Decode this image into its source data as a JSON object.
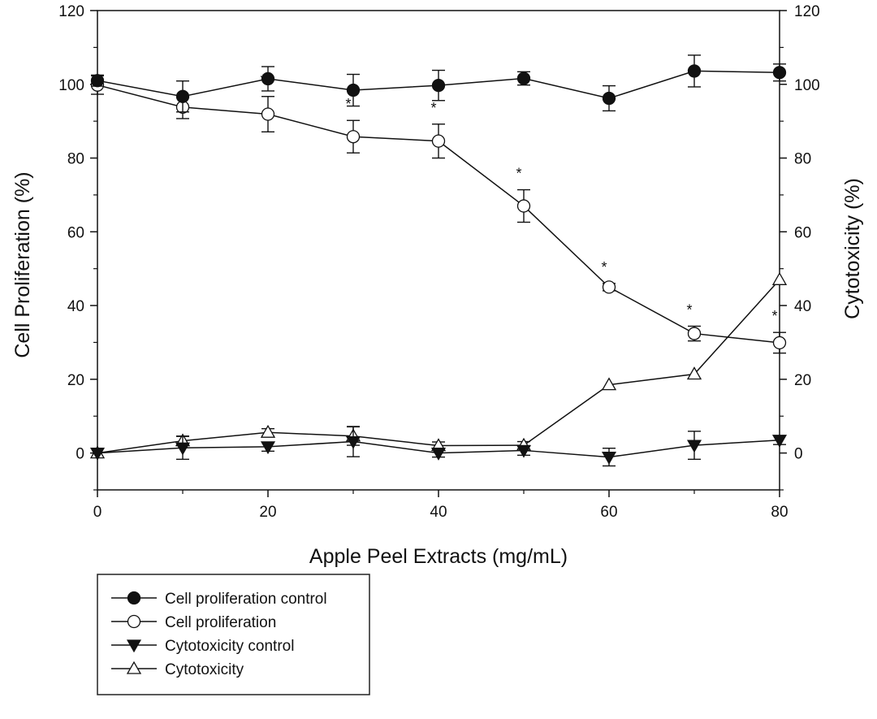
{
  "chart_data": {
    "type": "line",
    "title": "",
    "xlabel": "Apple Peel Extracts (mg/mL)",
    "ylabel": "Cell Proliferation (%)",
    "y2label": "Cytotoxicity (%)",
    "xlim": [
      0,
      80
    ],
    "ylim": [
      -10,
      120
    ],
    "y2lim": [
      -10,
      120
    ],
    "xticks": [
      "0",
      "20",
      "40",
      "60",
      "80"
    ],
    "yticks": [
      "0",
      "20",
      "40",
      "60",
      "80",
      "100",
      "120"
    ],
    "y2ticks": [
      "0",
      "20",
      "40",
      "60",
      "80",
      "100",
      "120"
    ],
    "grid": false,
    "legend_position": "bottom-left",
    "x": [
      0,
      10,
      20,
      30,
      40,
      50,
      60,
      70,
      80
    ],
    "series": [
      {
        "name": "Cell proliferation control",
        "marker": "filled-circle",
        "values": [
          101,
          96.7,
          101.5,
          98.4,
          99.7,
          101.6,
          96.2,
          103.6,
          103.2
        ],
        "errors": [
          1.5,
          4.2,
          3.3,
          4.3,
          4.1,
          1.8,
          3.4,
          4.3,
          2.3
        ]
      },
      {
        "name": "Cell proliferation",
        "marker": "open-circle",
        "values": [
          99.8,
          93.8,
          91.9,
          85.8,
          84.6,
          67,
          45,
          32.4,
          29.9
        ],
        "errors": [
          2.5,
          3.1,
          4.8,
          4.4,
          4.6,
          4.4,
          1,
          2,
          2.8
        ],
        "significance": [
          "",
          "",
          "*",
          "*",
          "*",
          "*",
          "*",
          "*",
          "*"
        ]
      },
      {
        "name": "Cytotoxicity control",
        "marker": "filled-triangle-down",
        "values": [
          0,
          1.4,
          1.7,
          3.1,
          0,
          0.7,
          -1.1,
          2.1,
          3.5
        ],
        "errors": [
          0,
          3.1,
          1.2,
          4.1,
          1.1,
          1.3,
          2.4,
          3.8,
          1.2
        ]
      },
      {
        "name": "Cytotoxicity",
        "marker": "open-triangle-up",
        "values": [
          0,
          3.3,
          5.6,
          4.6,
          2,
          2.1,
          18.5,
          21.4,
          47
        ],
        "errors": [
          0,
          1.3,
          1,
          2.5,
          1,
          1,
          0,
          0,
          0
        ]
      }
    ]
  }
}
